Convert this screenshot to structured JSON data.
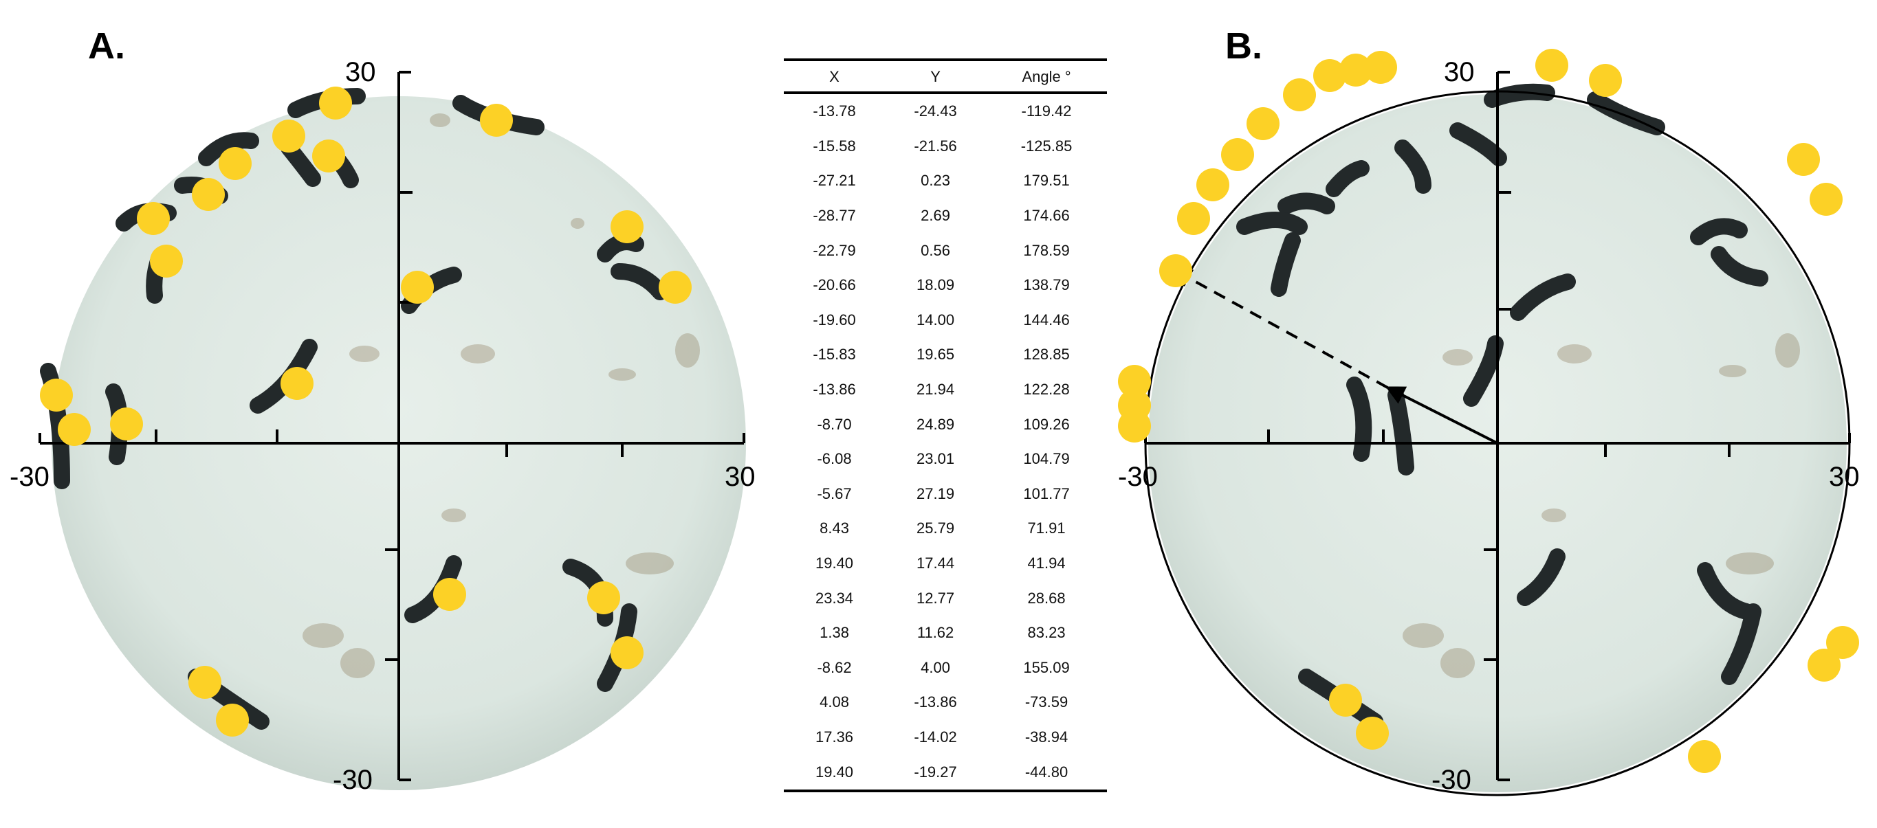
{
  "panels": {
    "a": {
      "letter": "A.",
      "ticks": {
        "top": "30",
        "bottom": "-30",
        "left": "-30",
        "right": "30"
      }
    },
    "b": {
      "letter": "B.",
      "ticks": {
        "top": "30",
        "bottom": "-30",
        "left": "-30",
        "right": "30"
      }
    }
  },
  "colors": {
    "marker": "#fcd126",
    "dish": "#dfe9e3",
    "larva": "#23292a",
    "axis": "#000000"
  },
  "table": {
    "headers": [
      "X",
      "Y",
      "Angle °"
    ],
    "rows": [
      [
        "-13.78",
        "-24.43",
        "-119.42"
      ],
      [
        "-15.58",
        "-21.56",
        "-125.85"
      ],
      [
        "-27.21",
        "0.23",
        "179.51"
      ],
      [
        "-28.77",
        "2.69",
        "174.66"
      ],
      [
        "-22.79",
        "0.56",
        "178.59"
      ],
      [
        "-20.66",
        "18.09",
        "138.79"
      ],
      [
        "-19.60",
        "14.00",
        "144.46"
      ],
      [
        "-15.83",
        "19.65",
        "128.85"
      ],
      [
        "-13.86",
        "21.94",
        "122.28"
      ],
      [
        "-8.70",
        "24.89",
        "109.26"
      ],
      [
        "-6.08",
        "23.01",
        "104.79"
      ],
      [
        "-5.67",
        "27.19",
        "101.77"
      ],
      [
        "8.43",
        "25.79",
        "71.91"
      ],
      [
        "19.40",
        "17.44",
        "41.94"
      ],
      [
        "23.34",
        "12.77",
        "28.68"
      ],
      [
        "1.38",
        "11.62",
        "83.23"
      ],
      [
        "-8.62",
        "4.00",
        "155.09"
      ],
      [
        "4.08",
        "-13.86",
        "-73.59"
      ],
      [
        "17.36",
        "-14.02",
        "-38.94"
      ],
      [
        "19.40",
        "-19.27",
        "-44.80"
      ]
    ]
  }
}
